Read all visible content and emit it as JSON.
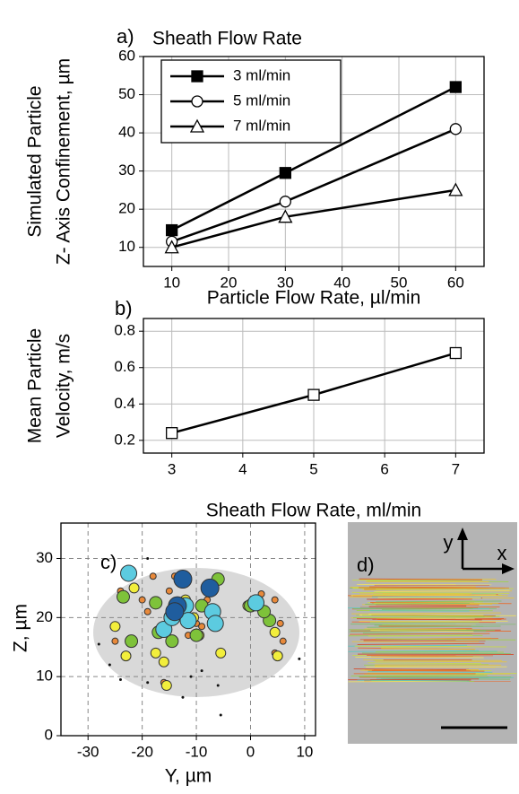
{
  "chart_data": [
    {
      "type": "line",
      "label": "a)",
      "legend_title": "Sheath Flow Rate",
      "ylabel": [
        "Simulated Particle",
        "Z- Axis Confinement, µm"
      ],
      "xlabel": "Particle Flow Rate, µl/min",
      "x": [
        10,
        30,
        60
      ],
      "xlim": [
        5,
        65
      ],
      "xticks": [
        10,
        20,
        30,
        40,
        50,
        60
      ],
      "ylim": [
        5,
        60
      ],
      "yticks": [
        10,
        20,
        30,
        40,
        50,
        60
      ],
      "grid": true,
      "legend": "upper left",
      "series": [
        {
          "name": "3 ml/min",
          "color": "#000000",
          "marker": "square",
          "filled": true,
          "values": [
            14.5,
            29.5,
            52
          ]
        },
        {
          "name": "5 ml/min",
          "color": "#000000",
          "marker": "circle",
          "filled": false,
          "values": [
            11.5,
            22,
            41
          ]
        },
        {
          "name": "7 ml/min",
          "color": "#000000",
          "marker": "triangle",
          "filled": false,
          "values": [
            10,
            18,
            25
          ]
        }
      ]
    },
    {
      "type": "line",
      "label": "b)",
      "ylabel": [
        "Mean Particle",
        "Velocity, m/s"
      ],
      "xlabel": "Sheath Flow Rate, ml/min",
      "x": [
        3,
        5,
        7
      ],
      "xlim": [
        2.6,
        7.4
      ],
      "xticks": [
        3,
        4,
        5,
        6,
        7
      ],
      "ylim": [
        0.13,
        0.87
      ],
      "yticks": [
        0.2,
        0.4,
        0.6,
        0.8
      ],
      "grid": true,
      "series": [
        {
          "color": "#000000",
          "marker": "square",
          "filled": false,
          "values": [
            0.24,
            0.45,
            0.68
          ]
        }
      ]
    },
    {
      "type": "scatter",
      "label": "c)",
      "ylabel": [
        "Z, µm"
      ],
      "xlabel": "Y, µm",
      "xlim": [
        -35,
        12
      ],
      "xticks": [
        -30,
        -20,
        -10,
        0,
        10
      ],
      "ylim": [
        0,
        36
      ],
      "yticks": [
        0,
        10,
        20,
        30
      ],
      "grid": "dashed",
      "series": [
        {
          "color": "#111111",
          "size": 1.5,
          "x": [
            -28,
            -26,
            -24,
            -19,
            -12.5,
            -11,
            -9,
            -6,
            -5.5,
            9,
            -19
          ],
          "values": [
            15.5,
            12,
            9.5,
            9,
            6.5,
            10,
            11,
            8.5,
            3.5,
            13,
            30
          ]
        },
        {
          "color": "#e8893a",
          "size": 3.5,
          "x": [
            -25,
            -24,
            -19,
            -15,
            -13,
            -11.5,
            -10,
            -9,
            -16,
            -20,
            -18,
            -14,
            -6,
            2,
            4.5,
            5.5,
            4.5,
            6,
            -8,
            -15.5
          ],
          "values": [
            16,
            24.5,
            21,
            24.5,
            22.5,
            17,
            19,
            18.5,
            9,
            23,
            27,
            27,
            27,
            24,
            23,
            19,
            14,
            16,
            23,
            19
          ]
        },
        {
          "color": "#f2ee3c",
          "size": 5.5,
          "x": [
            -21.5,
            -25,
            -23,
            -17.5,
            -16,
            -15.5,
            -10.5,
            -12,
            -5.5,
            4.5,
            5,
            -0.5,
            -9.5
          ],
          "values": [
            25,
            18.5,
            13.5,
            14,
            12.5,
            8.5,
            20,
            23,
            14,
            17.5,
            13.5,
            22,
            17
          ]
        },
        {
          "color": "#7ec23a",
          "size": 7,
          "x": [
            -23.5,
            -22,
            -17,
            -14.5,
            -10,
            -6,
            -9,
            0,
            3.5,
            2.5,
            -17.5
          ],
          "values": [
            23.5,
            16,
            17.5,
            16,
            17,
            26.5,
            22,
            22,
            19.5,
            21,
            22.5
          ]
        },
        {
          "color": "#5ccbe0",
          "size": 9,
          "x": [
            -22.5,
            -16,
            -12,
            -11.5,
            -7,
            -6.5,
            1,
            -14.5
          ],
          "values": [
            27.5,
            18,
            22,
            19.5,
            21,
            19,
            22.5,
            20
          ]
        },
        {
          "color": "#1f5d9e",
          "size": 10,
          "x": [
            -12.5,
            -13.5,
            -7.5,
            -14
          ],
          "values": [
            26.5,
            22,
            25,
            21
          ]
        }
      ]
    }
  ],
  "panel_d": {
    "label": "d)",
    "axis_y": "y",
    "axis_x": "x"
  }
}
